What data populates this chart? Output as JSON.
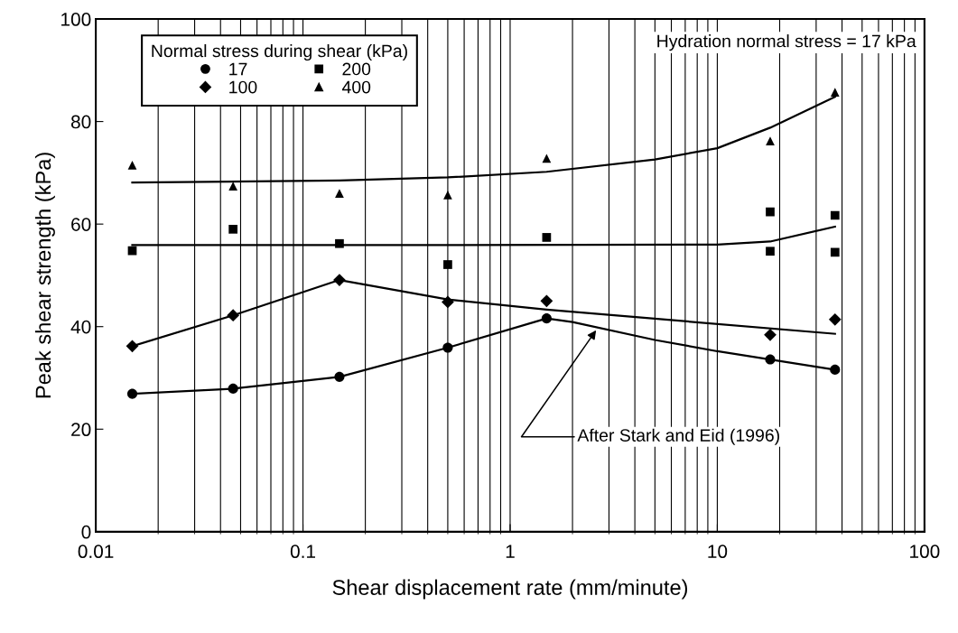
{
  "chart_data": {
    "type": "scatter",
    "xlabel": "Shear displacement rate (mm/minute)",
    "ylabel": "Peak shear strength (kPa)",
    "legend_title": "Normal stress during shear (kPa)",
    "log": "x",
    "xlim": [
      0.01,
      100
    ],
    "xticks": [
      0.01,
      0.1,
      1,
      10,
      100
    ],
    "ylim": [
      0,
      100
    ],
    "yticks": [
      0,
      20,
      40,
      60,
      80,
      100
    ],
    "grid": "x",
    "legend": "top left",
    "x": [
      0.015,
      0.046,
      0.15,
      0.5,
      1.5,
      18,
      37
    ],
    "series": [
      {
        "name": "17",
        "marker": "circle",
        "color": "#000000",
        "values": [
          26.9,
          27.9,
          30.2,
          35.9,
          41.6,
          33.6,
          31.6
        ]
      },
      {
        "name": "100",
        "marker": "diamond",
        "color": "#000000",
        "values": [
          36.2,
          42.2,
          49.1,
          44.8,
          45.0,
          38.4,
          41.4
        ]
      },
      {
        "name": "200",
        "marker": "square",
        "color": "#000000",
        "x": [
          0.015,
          0.046,
          0.15,
          0.5,
          1.5,
          18,
          18,
          37,
          37
        ],
        "values": [
          54.8,
          59.0,
          56.2,
          52.1,
          57.4,
          62.4,
          54.7,
          61.7,
          54.5
        ]
      },
      {
        "name": "400",
        "marker": "triangle",
        "color": "#000000",
        "values": [
          71.5,
          67.4,
          66.0,
          65.7,
          72.8,
          76.2,
          85.7
        ]
      },
      {
        "type": "line",
        "marker": "none",
        "color": "#000000",
        "x": [
          0.015,
          0.046,
          0.15,
          0.5,
          1.5,
          2,
          5,
          10,
          18,
          37
        ],
        "values": [
          26.9,
          27.9,
          30.2,
          35.9,
          41.6,
          40.9,
          37.4,
          35.2,
          33.6,
          31.6
        ]
      },
      {
        "type": "line",
        "marker": "none",
        "color": "#000000",
        "x": [
          0.015,
          0.046,
          0.15,
          0.5,
          1.5,
          37
        ],
        "values": [
          36.2,
          42.2,
          49.1,
          45.3,
          43.3,
          38.6
        ]
      },
      {
        "type": "line",
        "marker": "none",
        "color": "#000000",
        "x": [
          0.015,
          0.5,
          10,
          18,
          37
        ],
        "values": [
          55.9,
          55.9,
          56.0,
          56.6,
          59.5
        ]
      },
      {
        "type": "line",
        "marker": "none",
        "color": "#000000",
        "x": [
          0.015,
          0.15,
          0.5,
          1.5,
          5,
          10,
          18,
          37
        ],
        "values": [
          68.1,
          68.5,
          69.1,
          70.2,
          72.6,
          74.8,
          78.8,
          84.8
        ]
      }
    ],
    "annotations": [
      "Hydration normal stress = 17 kPa",
      {
        "text": "After Stark and Eid (1996)",
        "x": 2.6,
        "y": 39.3
      }
    ]
  }
}
